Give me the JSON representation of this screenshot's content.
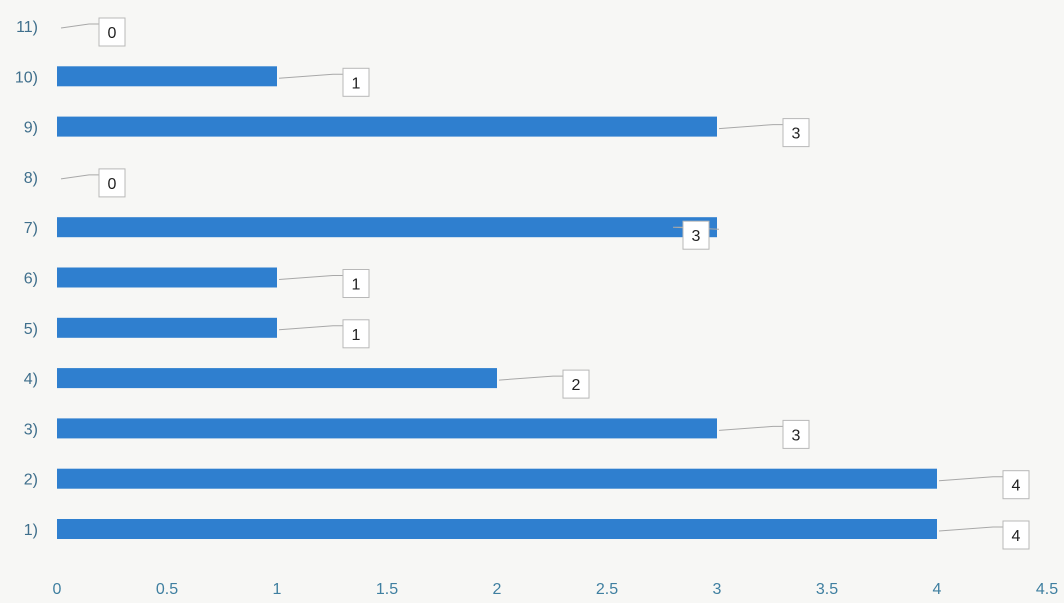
{
  "chart_data": {
    "type": "bar",
    "orientation": "horizontal",
    "categories": [
      "1)",
      "2)",
      "3)",
      "4)",
      "5)",
      "6)",
      "7)",
      "8)",
      "9)",
      "10)",
      "11)"
    ],
    "values": [
      4,
      4,
      3,
      2,
      1,
      1,
      3,
      0,
      3,
      1,
      0
    ],
    "data_labels": [
      "4",
      "4",
      "3",
      "2",
      "1",
      "1",
      "3",
      "0",
      "3",
      "1",
      "0"
    ],
    "x_ticks": [
      "0",
      "0.5",
      "1",
      "1.5",
      "2",
      "2.5",
      "3",
      "3.5",
      "4",
      "4.5"
    ],
    "x_tick_values": [
      0,
      0.5,
      1,
      1.5,
      2,
      2.5,
      3,
      3.5,
      4,
      4.5
    ],
    "xlim": [
      0,
      4.5
    ],
    "title": "",
    "xlabel": "",
    "ylabel": "",
    "grid": false,
    "legend": "none",
    "colors": {
      "bar": "#2f7fcf",
      "axis_text": "#3f7fa0"
    }
  }
}
